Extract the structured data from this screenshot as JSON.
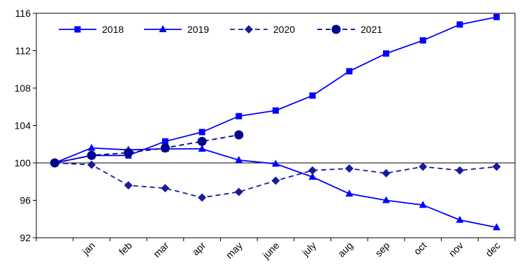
{
  "chart_data": {
    "type": "line",
    "title": "",
    "xlabel": "",
    "ylabel": "",
    "categories": [
      "",
      "jan",
      "feb",
      "mar",
      "apr",
      "may",
      "june",
      "july",
      "aug",
      "sep",
      "oct",
      "nov",
      "dec"
    ],
    "ylim": [
      92,
      116
    ],
    "yticks": [
      92,
      96,
      100,
      104,
      108,
      112,
      116
    ],
    "grid": false,
    "legend_position": "top-left",
    "colors": {
      "2018": "#0000ff",
      "2019": "#0000ff",
      "2020": "#1a1a9e",
      "2021": "#00008b"
    },
    "series": [
      {
        "name": "2018",
        "style": "solid",
        "marker": "square",
        "values": [
          100,
          100.8,
          100.8,
          102.3,
          103.3,
          105.0,
          105.6,
          107.2,
          109.8,
          111.7,
          113.1,
          114.8,
          115.6
        ]
      },
      {
        "name": "2019",
        "style": "solid",
        "marker": "triangle",
        "values": [
          100,
          101.6,
          101.4,
          101.5,
          101.5,
          100.3,
          99.9,
          98.5,
          96.7,
          96.0,
          95.5,
          93.9,
          93.1
        ]
      },
      {
        "name": "2020",
        "style": "dashed",
        "marker": "diamond",
        "values": [
          100,
          99.8,
          97.6,
          97.3,
          96.3,
          96.9,
          98.1,
          99.2,
          99.4,
          98.9,
          99.6,
          99.2,
          99.6
        ]
      },
      {
        "name": "2021",
        "style": "dashed",
        "marker": "circle",
        "values": [
          100,
          100.8,
          101.1,
          101.6,
          102.3,
          103.0,
          null,
          null,
          null,
          null,
          null,
          null,
          null
        ]
      }
    ]
  }
}
